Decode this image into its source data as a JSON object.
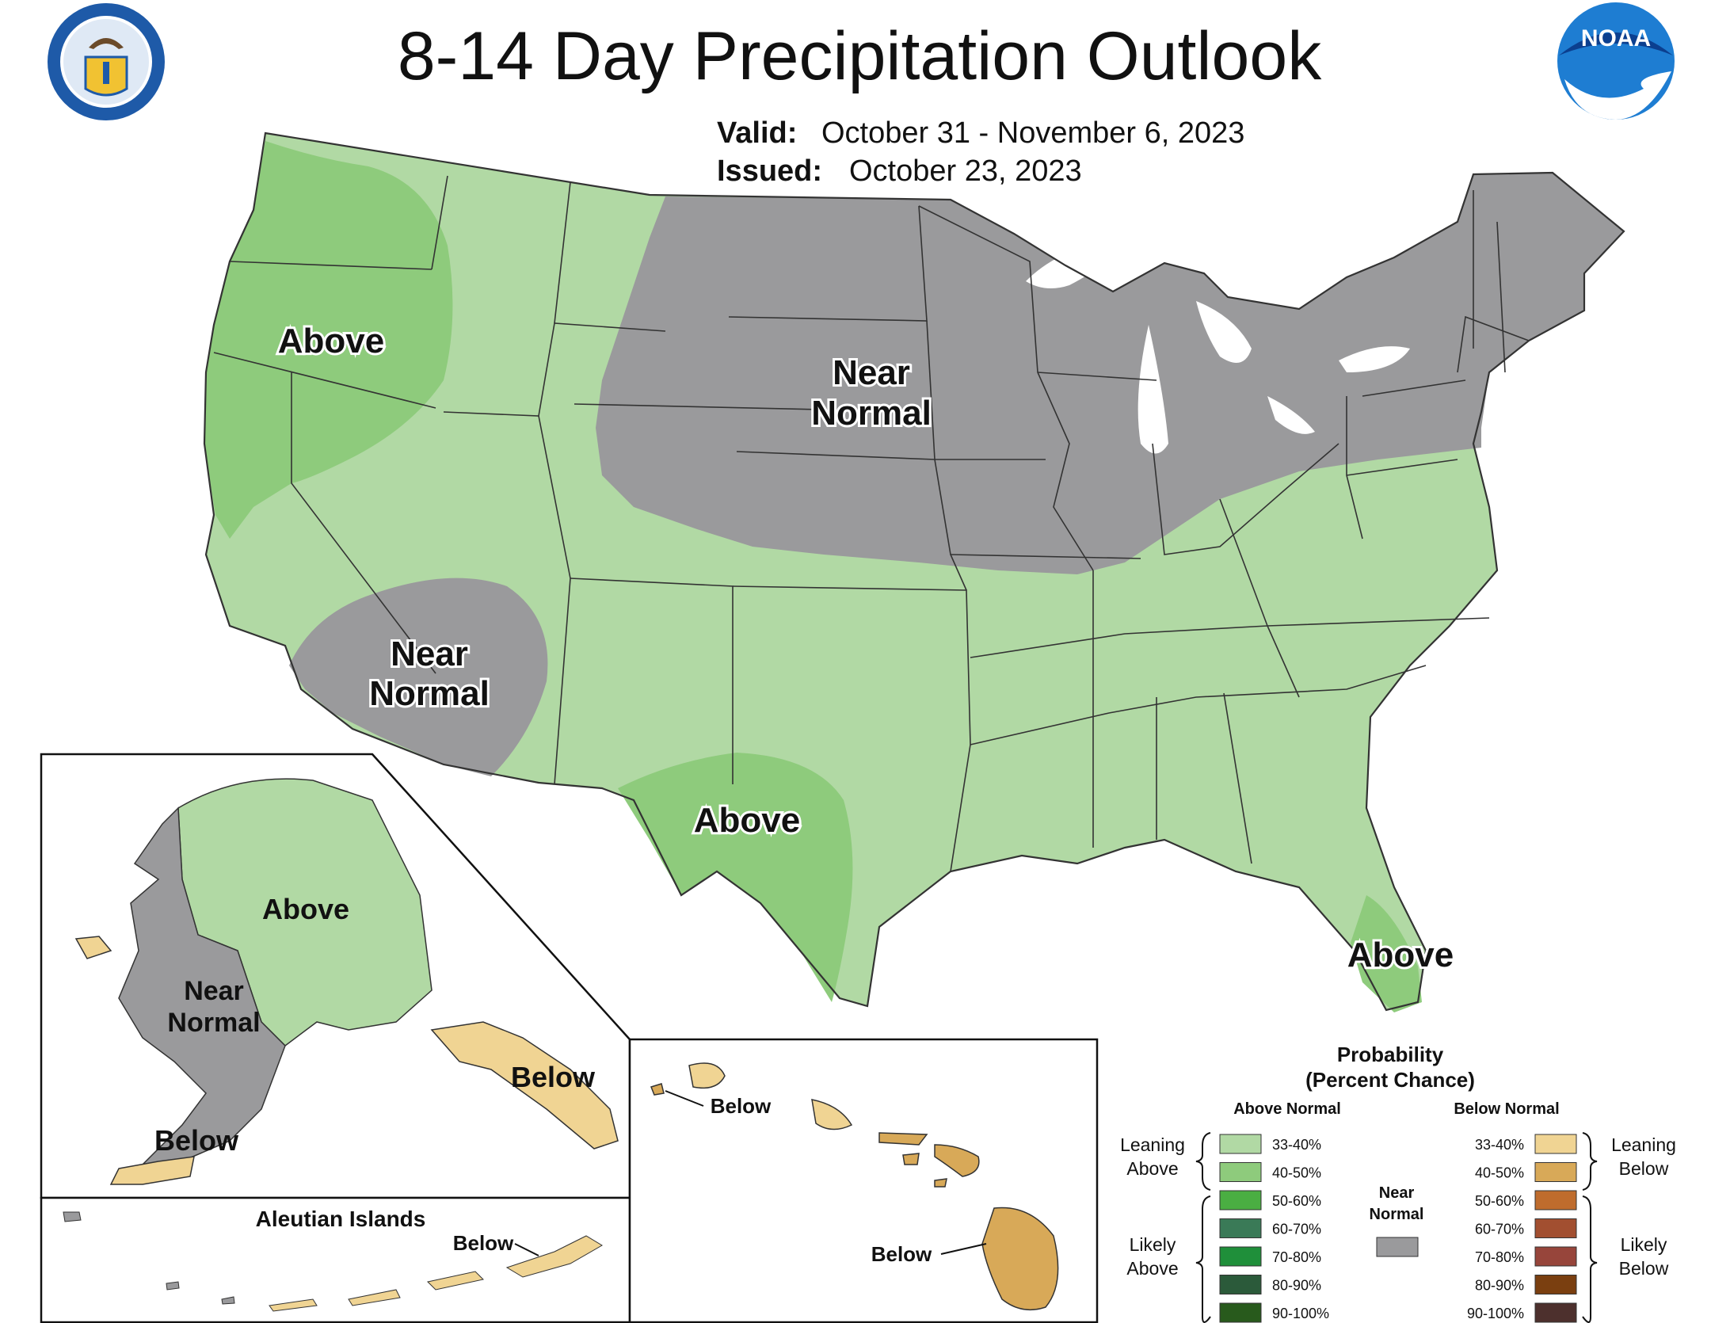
{
  "title": "8-14 Day Precipitation Outlook",
  "valid": {
    "label": "Valid:",
    "value": "October 31 - November 6, 2023"
  },
  "issued": {
    "label": "Issued:",
    "value": "October 23, 2023"
  },
  "logos": {
    "left": "department-of-commerce-seal-icon",
    "right": "noaa-logo-icon"
  },
  "noaa_text": "NOAA",
  "colors": {
    "leaning_above": "#b1d9a4",
    "above_40_50": "#8ecb7c",
    "near_normal": "#9a9a9c",
    "leaning_below": "#f0d493",
    "below_40_50": "#d8a958",
    "lake": "#ffffff",
    "border": "#333333"
  },
  "labels": {
    "pacific_nw_above": "Above",
    "central_near_normal_1": "Near",
    "central_near_normal_2": "Normal",
    "sw_near_normal_1": "Near",
    "sw_near_normal_2": "Normal",
    "texas_above": "Above",
    "florida_above": "Above"
  },
  "alaska": {
    "above": "Above",
    "near_normal_1": "Near",
    "near_normal_2": "Normal",
    "below_south": "Below",
    "below_panhandle": "Below"
  },
  "aleutian": {
    "title": "Aleutian Islands",
    "below": "Below"
  },
  "hawaii": {
    "below_kauai": "Below",
    "below_big_island": "Below"
  },
  "legend": {
    "title_line1": "Probability",
    "title_line2": "(Percent Chance)",
    "above_header": "Above Normal",
    "below_header": "Below Normal",
    "leaning_above_1": "Leaning",
    "leaning_above_2": "Above",
    "likely_above_1": "Likely",
    "likely_above_2": "Above",
    "leaning_below_1": "Leaning",
    "leaning_below_2": "Below",
    "likely_below_1": "Likely",
    "likely_below_2": "Below",
    "near_normal_1": "Near",
    "near_normal_2": "Normal",
    "above_items": [
      {
        "label": "33-40%",
        "color": "#b1d9a4"
      },
      {
        "label": "40-50%",
        "color": "#8ecb7c"
      },
      {
        "label": "50-60%",
        "color": "#4aae42"
      },
      {
        "label": "60-70%",
        "color": "#3a7a57"
      },
      {
        "label": "70-80%",
        "color": "#1f8f3a"
      },
      {
        "label": "80-90%",
        "color": "#2b5a3a"
      },
      {
        "label": "90-100%",
        "color": "#285a1c"
      }
    ],
    "below_items": [
      {
        "label": "33-40%",
        "color": "#f0d493"
      },
      {
        "label": "40-50%",
        "color": "#d8a958"
      },
      {
        "label": "50-60%",
        "color": "#bf6c2d"
      },
      {
        "label": "60-70%",
        "color": "#a24f30"
      },
      {
        "label": "70-80%",
        "color": "#97453b"
      },
      {
        "label": "80-90%",
        "color": "#7a3f10"
      },
      {
        "label": "90-100%",
        "color": "#4d302d"
      }
    ]
  }
}
